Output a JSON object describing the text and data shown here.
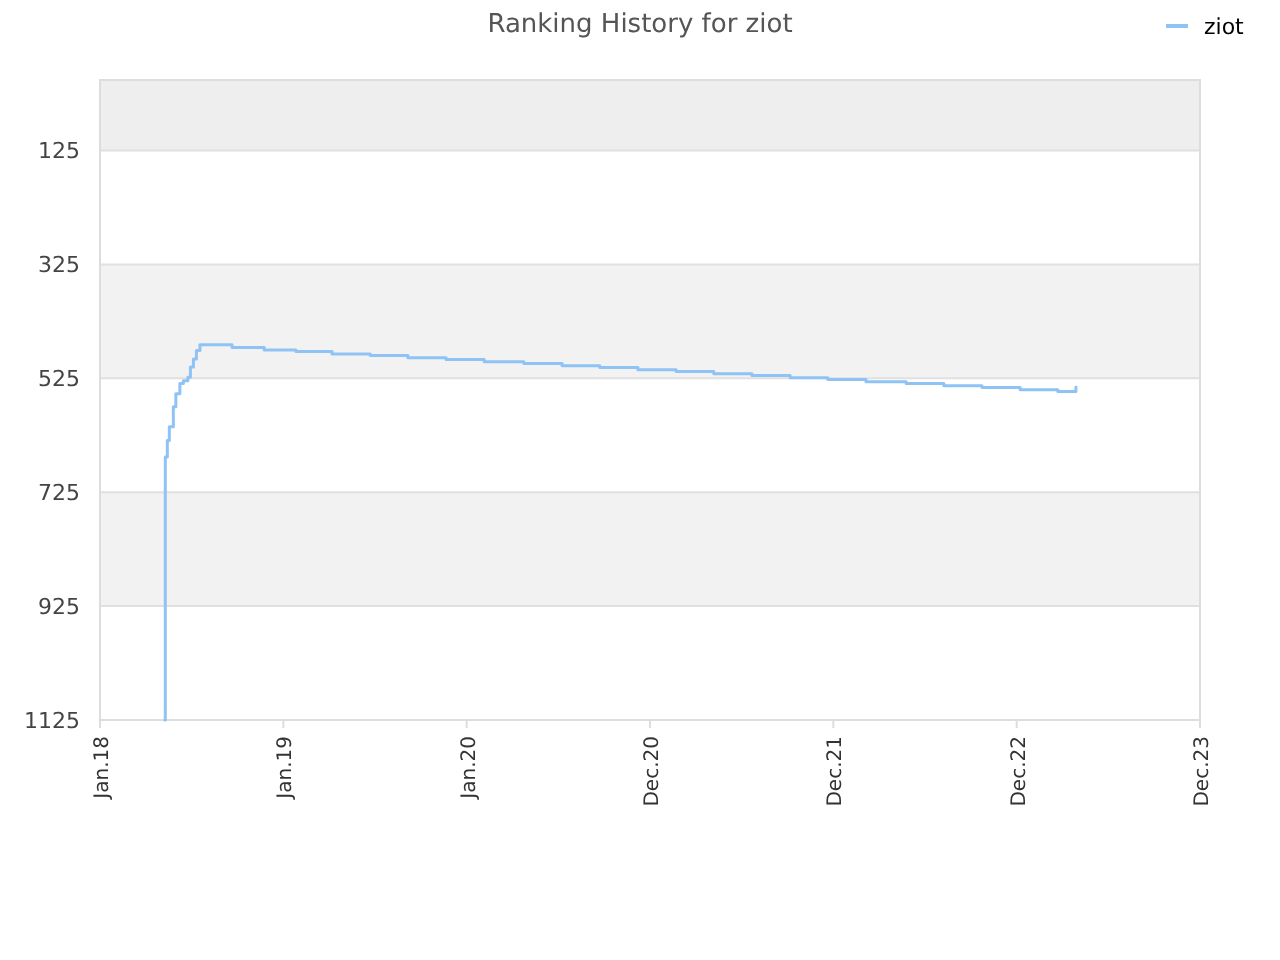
{
  "chart_data": {
    "type": "step",
    "title": "Ranking History for ziot",
    "x": [
      "2018-05-10",
      "2018-05-11",
      "2018-05-15",
      "2018-05-19",
      "2018-05-27",
      "2018-06-01",
      "2018-06-09",
      "2018-06-16",
      "2018-06-25",
      "2018-06-30",
      "2018-07-06",
      "2018-07-12",
      "2018-07-19",
      "2018-09-21",
      "2018-11-24",
      "2019-01-26",
      "2019-04-08",
      "2019-06-23",
      "2019-09-06",
      "2019-11-21",
      "2020-02-05",
      "2020-04-24",
      "2020-07-09",
      "2020-09-22",
      "2020-12-07",
      "2021-02-21",
      "2021-05-07",
      "2021-07-22",
      "2021-10-06",
      "2021-12-20",
      "2022-03-06",
      "2022-05-25",
      "2022-08-08",
      "2022-10-23",
      "2023-01-07",
      "2023-03-23",
      "2023-04-28"
    ],
    "series": [
      {
        "name": "ziot",
        "color": "#8fc3f5",
        "values": [
          1125,
          663,
          634,
          610,
          575,
          552,
          534,
          529,
          523,
          505,
          491,
          476,
          466,
          471,
          475,
          478,
          482,
          485,
          489,
          492,
          496,
          499,
          503,
          506,
          510,
          513,
          517,
          520,
          524,
          527,
          531,
          534,
          538,
          541,
          545,
          548,
          540
        ]
      }
    ],
    "xlim": [
      "2018-01-01",
      "2023-12-31"
    ],
    "xticks": [
      {
        "value": "2018-01-01",
        "label": "Jan.18"
      },
      {
        "value": "2019-01-01",
        "label": "Jan.19"
      },
      {
        "value": "2020-01-01",
        "label": "Jan.20"
      },
      {
        "value": "2020-12-31",
        "label": "Dec.20"
      },
      {
        "value": "2021-12-31",
        "label": "Dec.21"
      },
      {
        "value": "2022-12-31",
        "label": "Dec.22"
      },
      {
        "value": "2023-12-31",
        "label": "Dec.23"
      }
    ],
    "ylim": [
      1125,
      1
    ],
    "yticks": [
      125,
      325,
      525,
      725,
      925,
      1125
    ],
    "bands": [
      {
        "axis": "y",
        "from": 1,
        "to": 125,
        "color": "#eeeeee"
      },
      {
        "axis": "y",
        "from": 325,
        "to": 525,
        "color": "#f2f2f2"
      },
      {
        "axis": "y",
        "from": 725,
        "to": 925,
        "color": "#f2f2f2"
      }
    ],
    "grid": "y",
    "legend": "top right"
  }
}
